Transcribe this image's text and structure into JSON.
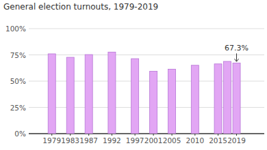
{
  "chart_data": {
    "type": "bar",
    "title": "General election turnouts, 1979-2019",
    "x": [
      1979,
      1983,
      1987,
      1992,
      1997,
      2001,
      2005,
      2010,
      2015,
      2017,
      2019
    ],
    "values": [
      76.0,
      72.7,
      75.3,
      77.7,
      71.4,
      59.4,
      61.4,
      65.1,
      66.4,
      68.8,
      67.3
    ],
    "color": "#e2a6f4",
    "xlim": [
      1974,
      2025
    ],
    "xticks": [
      1979,
      1983,
      1987,
      1992,
      1997,
      2001,
      2005,
      2010,
      2015,
      2019
    ],
    "ylim": [
      0,
      100
    ],
    "yticks": [
      {
        "value": 0,
        "label": "0%"
      },
      {
        "value": 25,
        "label": "25%"
      },
      {
        "value": 50,
        "label": "50%"
      },
      {
        "value": 75,
        "label": "75%"
      },
      {
        "value": 100,
        "label": "100%"
      }
    ],
    "grid": true,
    "annotations": [
      {
        "text": "67.3%",
        "x": 2019,
        "value": 67.3
      }
    ]
  }
}
